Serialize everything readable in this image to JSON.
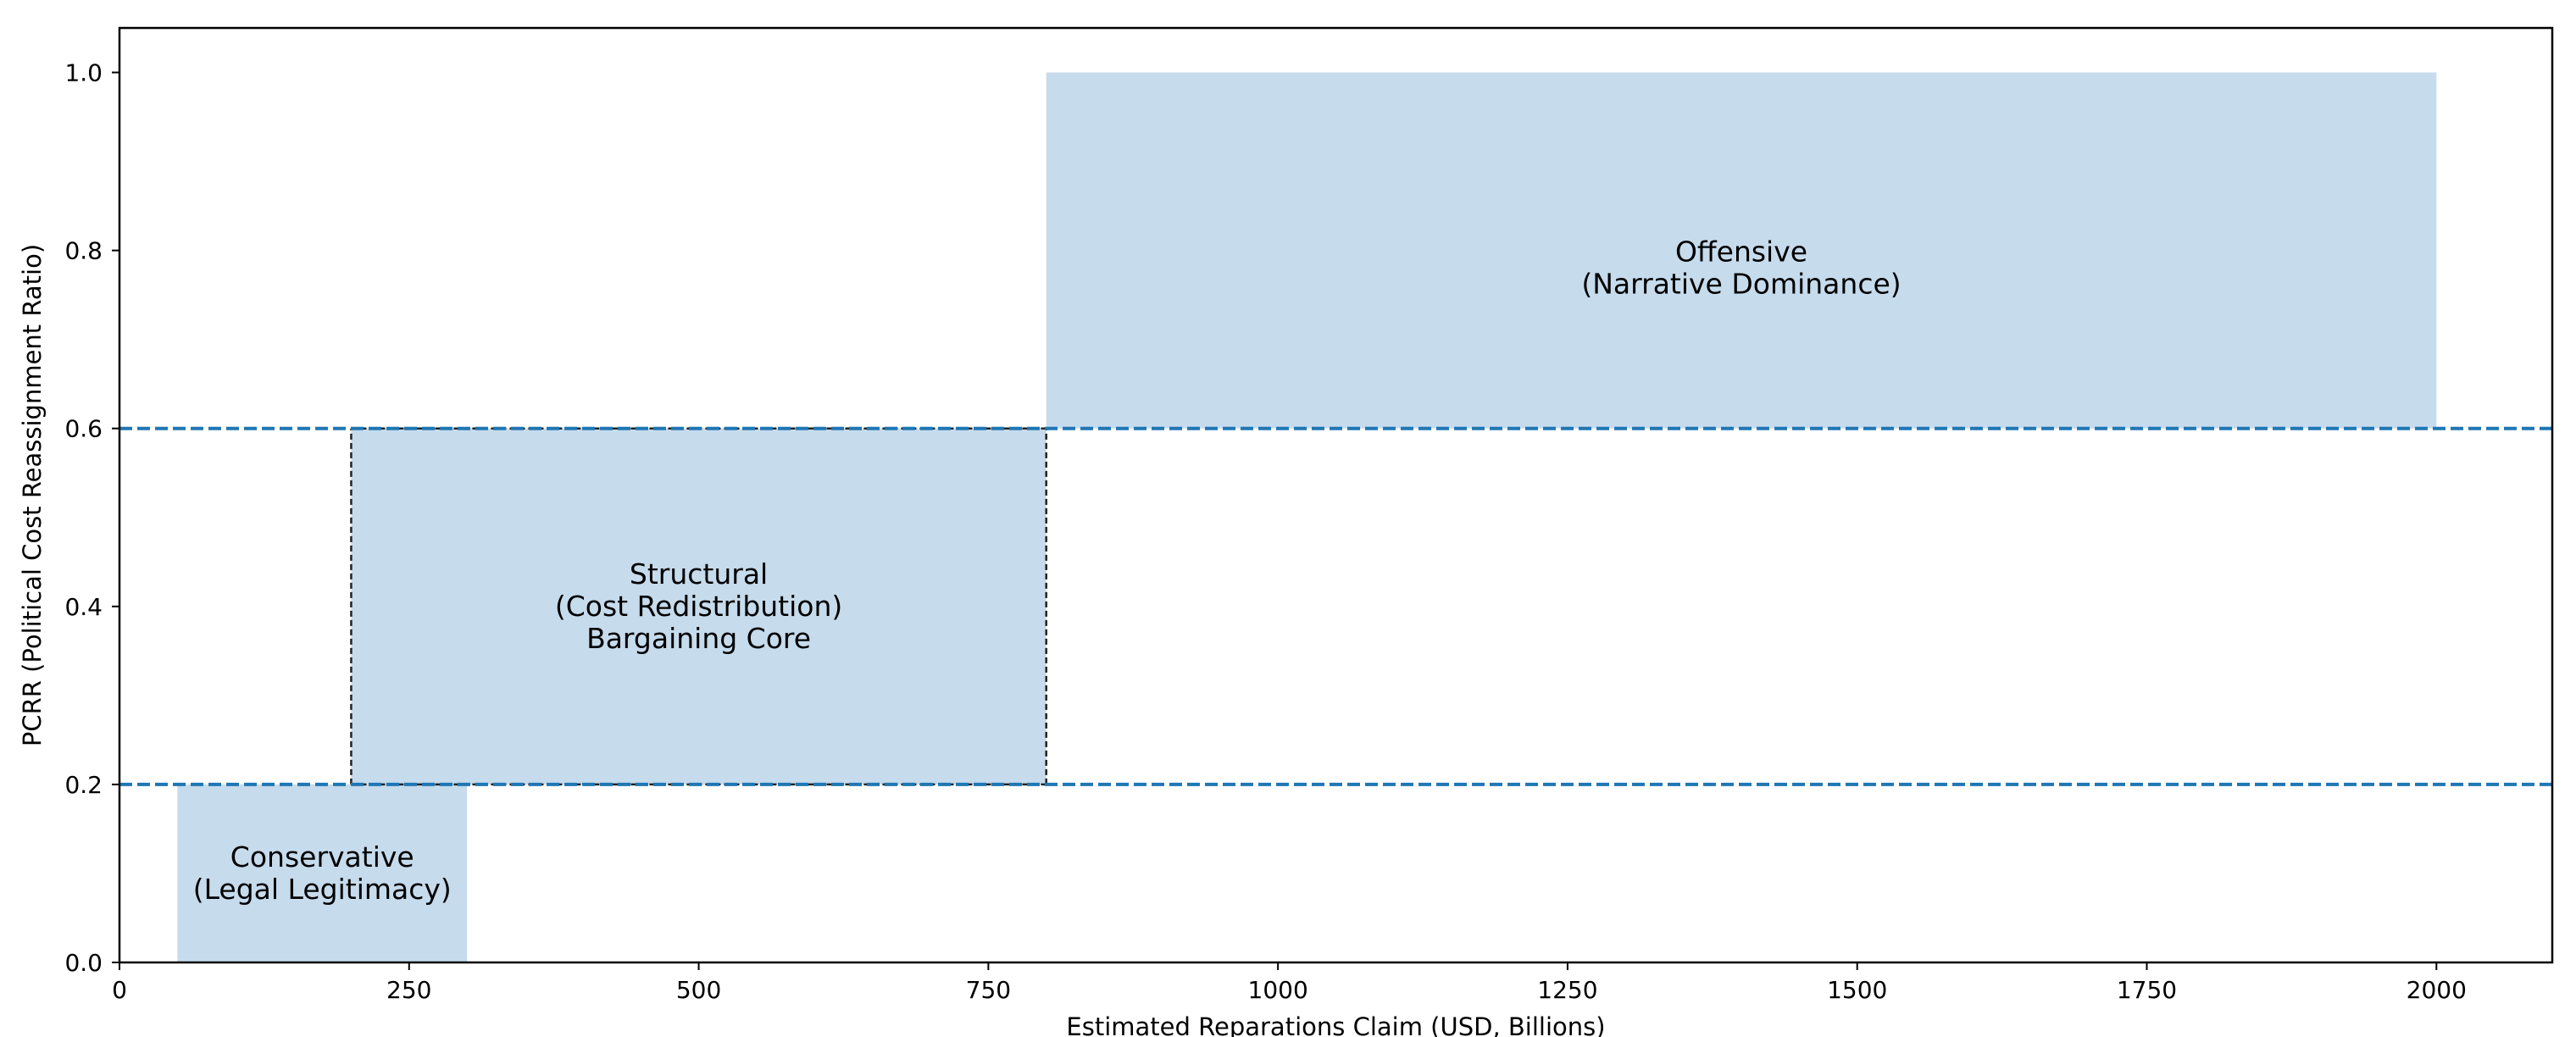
{
  "chart_data": {
    "type": "area",
    "xlabel": "Estimated Reparations Claim (USD, Billions)",
    "ylabel": "PCRR (Political Cost Reassignment Ratio)",
    "xlim": [
      0,
      2100
    ],
    "ylim": [
      0,
      1.05
    ],
    "xticks": [
      0,
      250,
      500,
      750,
      1000,
      1250,
      1500,
      1750,
      2000
    ],
    "xtick_labels": [
      "0",
      "250",
      "500",
      "750",
      "1000",
      "1250",
      "1500",
      "1750",
      "2000"
    ],
    "yticks": [
      0,
      0.2,
      0.4,
      0.6,
      0.8,
      1.0
    ],
    "ytick_labels": [
      "0.0",
      "0.2",
      "0.4",
      "0.6",
      "0.8",
      "1.0"
    ],
    "grid": false,
    "fill_color": "#c6dbec",
    "threshold_color": "#1f77b4",
    "regions": [
      {
        "name": "conservative",
        "x": [
          50,
          300
        ],
        "y": [
          0,
          0.2
        ],
        "label_lines": [
          "Conservative",
          "(Legal Legitimacy)"
        ],
        "label_at": [
          175,
          0.1
        ]
      },
      {
        "name": "structural",
        "x": [
          200,
          800
        ],
        "y": [
          0.2,
          0.6
        ],
        "label_lines": [
          "Structural",
          "(Cost Redistribution)",
          "Bargaining Core"
        ],
        "label_at": [
          500,
          0.4
        ]
      },
      {
        "name": "offensive",
        "x": [
          800,
          2000
        ],
        "y": [
          0.6,
          1.0
        ],
        "label_lines": [
          "Offensive",
          "(Narrative Dominance)"
        ],
        "label_at": [
          1400,
          0.78
        ]
      }
    ],
    "bargaining_core_outline": {
      "x": [
        200,
        800
      ],
      "y": [
        0.2,
        0.6
      ],
      "style": "dashed",
      "color": "#222222"
    },
    "thresholds": [
      0.2,
      0.6
    ]
  }
}
